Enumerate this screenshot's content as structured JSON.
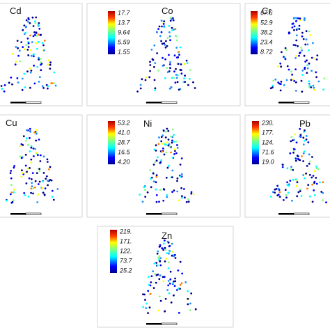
{
  "panels": [
    {
      "element": "Cd",
      "legend": []
    },
    {
      "element": "Co",
      "legend": [
        "17.7",
        "13.7",
        "9.64",
        "5.59",
        "1.55"
      ]
    },
    {
      "element": "Cr",
      "legend": [
        "67.6",
        "52.9",
        "38.2",
        "23.4",
        "8.72"
      ]
    },
    {
      "element": "Cu",
      "legend": []
    },
    {
      "element": "Ni",
      "legend": [
        "53.2",
        "41.0",
        "28.7",
        "16.5",
        "4.20"
      ]
    },
    {
      "element": "Pb",
      "legend": [
        "230.",
        "177.",
        "124.",
        "71.6",
        "19.0"
      ]
    },
    {
      "element": "Zn",
      "legend": [
        "219.",
        "171.",
        "122.",
        "73.7",
        "25.2"
      ]
    }
  ]
}
